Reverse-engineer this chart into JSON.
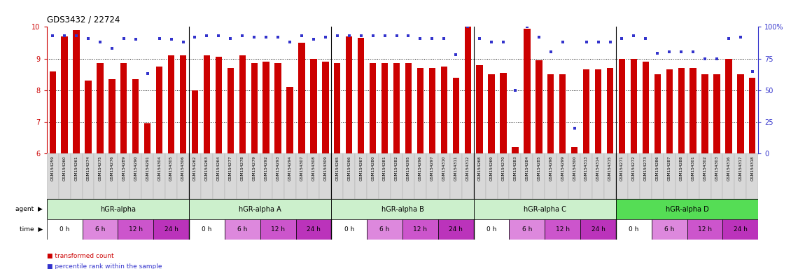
{
  "title": "GDS3432 / 22724",
  "gsm_labels": [
    "GSM154259",
    "GSM154260",
    "GSM154261",
    "GSM154274",
    "GSM154275",
    "GSM154276",
    "GSM154289",
    "GSM154290",
    "GSM154291",
    "GSM154304",
    "GSM154305",
    "GSM154306",
    "GSM154262",
    "GSM154263",
    "GSM154264",
    "GSM154277",
    "GSM154278",
    "GSM154279",
    "GSM154292",
    "GSM154293",
    "GSM154294",
    "GSM154307",
    "GSM154308",
    "GSM154309",
    "GSM154265",
    "GSM154266",
    "GSM154267",
    "GSM154280",
    "GSM154281",
    "GSM154282",
    "GSM154295",
    "GSM154296",
    "GSM154297",
    "GSM154310",
    "GSM154311",
    "GSM154312",
    "GSM154268",
    "GSM154269",
    "GSM154270",
    "GSM154283",
    "GSM154284",
    "GSM154285",
    "GSM154298",
    "GSM154299",
    "GSM154300",
    "GSM154313",
    "GSM154314",
    "GSM154315",
    "GSM154271",
    "GSM154272",
    "GSM154273",
    "GSM154286",
    "GSM154287",
    "GSM154288",
    "GSM154301",
    "GSM154302",
    "GSM154303",
    "GSM154316",
    "GSM154317",
    "GSM154318"
  ],
  "bar_values": [
    8.6,
    9.7,
    9.9,
    8.3,
    8.85,
    8.35,
    8.85,
    8.35,
    6.95,
    8.75,
    9.1,
    9.1,
    8.0,
    9.1,
    9.05,
    8.7,
    9.1,
    8.85,
    8.9,
    8.85,
    8.1,
    9.5,
    9.0,
    8.9,
    8.85,
    9.7,
    9.65,
    8.85,
    8.85,
    8.85,
    8.85,
    8.7,
    8.7,
    8.75,
    8.4,
    10.1,
    8.8,
    8.5,
    8.55,
    6.2,
    9.95,
    8.95,
    8.5,
    8.5,
    6.2,
    8.65,
    8.65,
    8.7,
    9.0,
    9.0,
    8.9,
    8.5,
    8.65,
    8.7,
    8.7,
    8.5,
    8.5,
    9.0,
    8.5,
    8.4
  ],
  "dot_values": [
    93,
    93,
    93,
    91,
    88,
    83,
    91,
    90,
    63,
    91,
    90,
    88,
    92,
    93,
    93,
    91,
    93,
    92,
    92,
    92,
    88,
    93,
    90,
    92,
    93,
    93,
    93,
    93,
    93,
    93,
    93,
    91,
    91,
    91,
    78,
    100,
    91,
    88,
    88,
    50,
    100,
    92,
    80,
    88,
    20,
    88,
    88,
    88,
    91,
    93,
    91,
    79,
    80,
    80,
    80,
    75,
    75,
    91,
    92,
    65
  ],
  "ylim_left": [
    6,
    10
  ],
  "ylim_right": [
    0,
    100
  ],
  "yticks_left": [
    6,
    7,
    8,
    9,
    10
  ],
  "yticks_right": [
    0,
    25,
    50,
    75,
    100
  ],
  "ytick_right_labels": [
    "0",
    "25",
    "50",
    "75",
    "100%"
  ],
  "bar_color": "#cc0000",
  "dot_color": "#3333cc",
  "agents": [
    "hGR-alpha",
    "hGR-alpha A",
    "hGR-alpha B",
    "hGR-alpha C",
    "hGR-alpha D"
  ],
  "agent_color_light": "#ccf0cc",
  "agent_color_dark": "#55dd55",
  "time_labels": [
    "0 h",
    "6 h",
    "12 h",
    "24 h"
  ],
  "time_color_0h": "#ffffff",
  "time_color_6h": "#dd88dd",
  "time_color_12h": "#cc55cc",
  "time_color_24h": "#bb33bb",
  "group_size": 12,
  "n_groups": 5,
  "samples_per_time": 3,
  "n_time": 4,
  "xtick_bg": "#dddddd"
}
